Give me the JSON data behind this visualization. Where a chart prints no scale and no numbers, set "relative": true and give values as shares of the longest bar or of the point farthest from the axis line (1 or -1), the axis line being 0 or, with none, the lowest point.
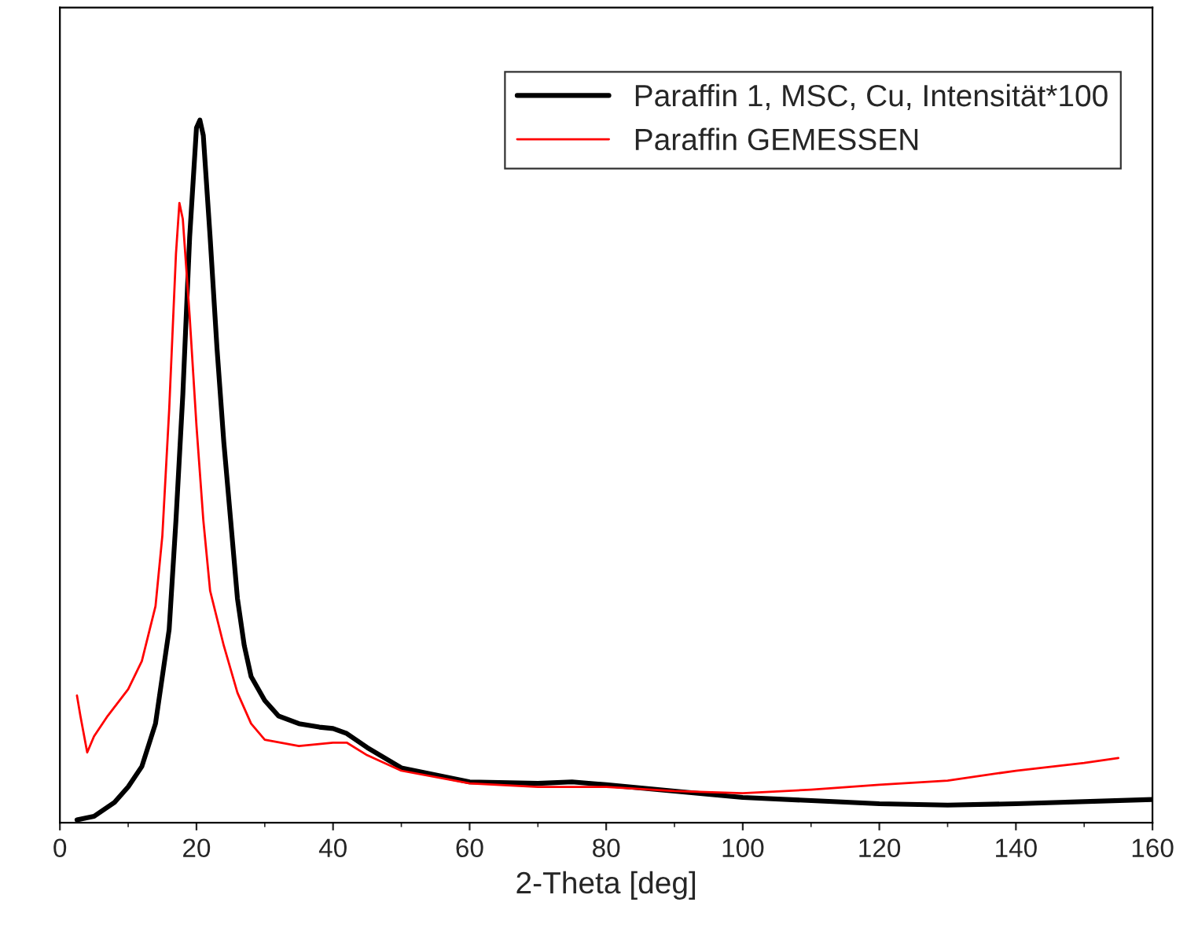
{
  "chart_data": {
    "type": "line",
    "xlabel": "2-Theta [deg]",
    "relative": true,
    "xlim": [
      0,
      160
    ],
    "xticks": [
      0,
      20,
      40,
      60,
      80,
      100,
      120,
      140,
      160
    ],
    "legend": "top right",
    "grid": false,
    "tick_labels": "x",
    "series": [
      {
        "name": "Paraffin 1, MSC, Cu, Intensität*100",
        "color": "#000000",
        "x": [
          2.5,
          5,
          8,
          10,
          12,
          14,
          16,
          17,
          18,
          19,
          20,
          20.5,
          21,
          22,
          23,
          24,
          25,
          26,
          27,
          28,
          30,
          32,
          35,
          38,
          40,
          42,
          45,
          50,
          60,
          70,
          75,
          80,
          90,
          100,
          120,
          130,
          140,
          160
        ],
        "values": [
          0.004,
          0.009,
          0.029,
          0.051,
          0.08,
          0.141,
          0.275,
          0.431,
          0.609,
          0.833,
          0.989,
          1,
          0.978,
          0.833,
          0.676,
          0.542,
          0.431,
          0.319,
          0.252,
          0.208,
          0.174,
          0.152,
          0.141,
          0.136,
          0.134,
          0.127,
          0.107,
          0.078,
          0.058,
          0.056,
          0.058,
          0.054,
          0.045,
          0.036,
          0.027,
          0.025,
          0.027,
          0.033
        ]
      },
      {
        "name": "Paraffin GEMESSEN",
        "color": "#ff0000",
        "x": [
          2.5,
          3,
          4,
          5,
          7,
          10,
          12,
          14,
          15,
          16,
          17,
          17.5,
          18,
          19,
          20,
          21,
          22,
          24,
          26,
          28,
          30,
          35,
          40,
          42,
          45,
          50,
          60,
          70,
          80,
          90,
          100,
          110,
          120,
          130,
          140,
          150,
          155
        ],
        "values": [
          0.181,
          0.152,
          0.1,
          0.123,
          0.152,
          0.19,
          0.23,
          0.308,
          0.408,
          0.587,
          0.81,
          0.882,
          0.859,
          0.721,
          0.565,
          0.431,
          0.33,
          0.252,
          0.185,
          0.141,
          0.118,
          0.109,
          0.114,
          0.114,
          0.096,
          0.074,
          0.056,
          0.051,
          0.051,
          0.045,
          0.042,
          0.047,
          0.054,
          0.06,
          0.074,
          0.085,
          0.092
        ]
      }
    ]
  }
}
